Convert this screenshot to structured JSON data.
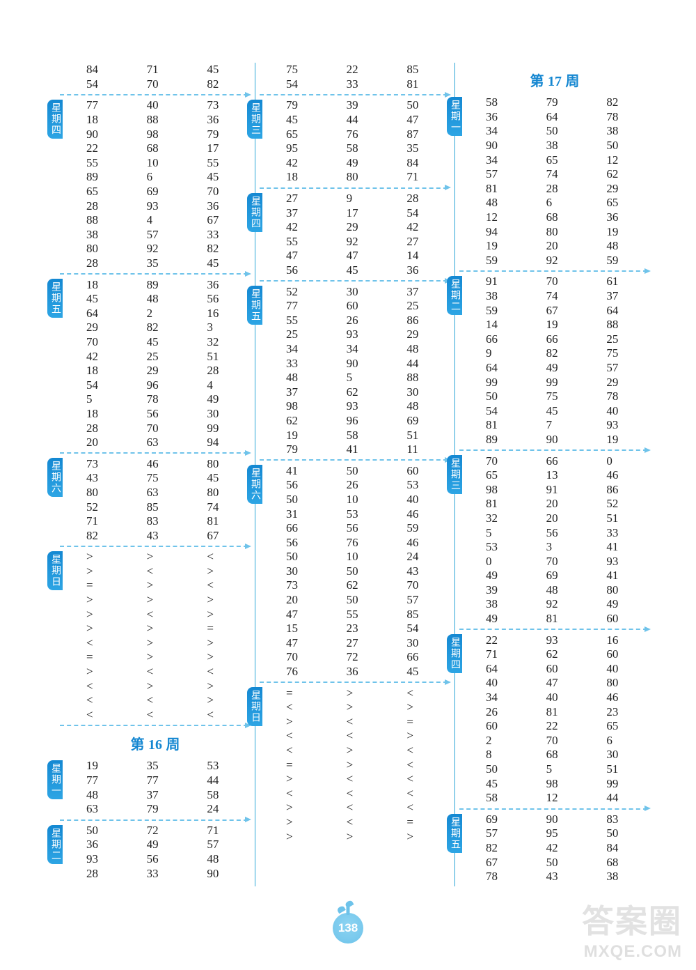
{
  "page_number": "138",
  "watermark_main": "答案圈",
  "watermark_sub": "MXQE.COM",
  "columns": [
    {
      "blocks": [
        {
          "tab": null,
          "rows": [
            [
              "84",
              "71",
              "45"
            ],
            [
              "54",
              "70",
              "82"
            ]
          ],
          "divider_after": true
        },
        {
          "tab": "星期四",
          "rows": [
            [
              "77",
              "40",
              "73"
            ],
            [
              "18",
              "88",
              "36"
            ],
            [
              "90",
              "98",
              "79"
            ],
            [
              "22",
              "68",
              "17"
            ],
            [
              "55",
              "10",
              "55"
            ],
            [
              "89",
              "6",
              "45"
            ],
            [
              "65",
              "69",
              "70"
            ],
            [
              "28",
              "93",
              "36"
            ],
            [
              "88",
              "4",
              "67"
            ],
            [
              "38",
              "57",
              "33"
            ],
            [
              "80",
              "92",
              "82"
            ],
            [
              "28",
              "35",
              "45"
            ]
          ],
          "divider_after": true
        },
        {
          "tab": "星期五",
          "rows": [
            [
              "18",
              "89",
              "36"
            ],
            [
              "45",
              "48",
              "56"
            ],
            [
              "64",
              "2",
              "16"
            ],
            [
              "29",
              "82",
              "3"
            ],
            [
              "70",
              "45",
              "32"
            ],
            [
              "42",
              "25",
              "51"
            ],
            [
              "18",
              "29",
              "28"
            ],
            [
              "54",
              "96",
              "4"
            ],
            [
              "5",
              "78",
              "49"
            ],
            [
              "18",
              "56",
              "30"
            ],
            [
              "28",
              "70",
              "99"
            ],
            [
              "20",
              "63",
              "94"
            ]
          ],
          "divider_after": true
        },
        {
          "tab": "星期六",
          "rows": [
            [
              "73",
              "46",
              "80"
            ],
            [
              "43",
              "75",
              "45"
            ],
            [
              "80",
              "63",
              "80"
            ],
            [
              "52",
              "85",
              "74"
            ],
            [
              "71",
              "83",
              "81"
            ],
            [
              "82",
              "43",
              "67"
            ]
          ],
          "divider_after": true
        },
        {
          "tab": "星期日",
          "rows": [
            [
              ">",
              ">",
              "<"
            ],
            [
              ">",
              "<",
              ">"
            ],
            [
              "=",
              ">",
              "<"
            ],
            [
              ">",
              ">",
              ">"
            ],
            [
              ">",
              "<",
              ">"
            ],
            [
              ">",
              ">",
              "="
            ],
            [
              "<",
              ">",
              ">"
            ],
            [
              "=",
              ">",
              ">"
            ],
            [
              ">",
              "<",
              "<"
            ],
            [
              "<",
              ">",
              ">"
            ],
            [
              "<",
              "<",
              ">"
            ],
            [
              "<",
              "<",
              "<"
            ]
          ],
          "divider_after": true
        },
        {
          "week_title": "第 16 周"
        },
        {
          "tab": "星期一",
          "rows": [
            [
              "19",
              "35",
              "53"
            ],
            [
              "77",
              "77",
              "44"
            ],
            [
              "48",
              "37",
              "58"
            ],
            [
              "63",
              "79",
              "24"
            ]
          ],
          "divider_after": true
        },
        {
          "tab": "星期二",
          "rows": [
            [
              "50",
              "72",
              "71"
            ],
            [
              "36",
              "49",
              "57"
            ],
            [
              "93",
              "56",
              "48"
            ],
            [
              "28",
              "33",
              "90"
            ]
          ],
          "divider_after": false
        }
      ]
    },
    {
      "blocks": [
        {
          "tab": null,
          "rows": [
            [
              "75",
              "22",
              "85"
            ],
            [
              "54",
              "33",
              "81"
            ]
          ],
          "divider_after": true
        },
        {
          "tab": "星期三",
          "rows": [
            [
              "79",
              "39",
              "50"
            ],
            [
              "45",
              "44",
              "47"
            ],
            [
              "65",
              "76",
              "87"
            ],
            [
              "95",
              "58",
              "35"
            ],
            [
              "42",
              "49",
              "84"
            ],
            [
              "18",
              "80",
              "71"
            ]
          ],
          "divider_after": true
        },
        {
          "tab": "星期四",
          "rows": [
            [
              "27",
              "9",
              "28"
            ],
            [
              "37",
              "17",
              "54"
            ],
            [
              "42",
              "29",
              "42"
            ],
            [
              "55",
              "92",
              "27"
            ],
            [
              "47",
              "47",
              "14"
            ],
            [
              "56",
              "45",
              "36"
            ]
          ],
          "divider_after": true
        },
        {
          "tab": "星期五",
          "rows": [
            [
              "52",
              "30",
              "37"
            ],
            [
              "77",
              "60",
              "25"
            ],
            [
              "55",
              "26",
              "86"
            ],
            [
              "25",
              "93",
              "29"
            ],
            [
              "34",
              "34",
              "48"
            ],
            [
              "33",
              "90",
              "44"
            ],
            [
              "48",
              "5",
              "88"
            ],
            [
              "37",
              "62",
              "30"
            ],
            [
              "98",
              "93",
              "48"
            ],
            [
              "62",
              "96",
              "69"
            ],
            [
              "19",
              "58",
              "51"
            ],
            [
              "79",
              "41",
              "11"
            ]
          ],
          "divider_after": true
        },
        {
          "tab": "星期六",
          "rows": [
            [
              "41",
              "50",
              "60"
            ],
            [
              "56",
              "26",
              "53"
            ],
            [
              "50",
              "10",
              "40"
            ],
            [
              "31",
              "53",
              "46"
            ],
            [
              "66",
              "56",
              "59"
            ],
            [
              "56",
              "76",
              "46"
            ],
            [
              "50",
              "10",
              "24"
            ],
            [
              "30",
              "50",
              "43"
            ],
            [
              "73",
              "62",
              "70"
            ],
            [
              "20",
              "50",
              "57"
            ],
            [
              "47",
              "55",
              "85"
            ],
            [
              "15",
              "23",
              "54"
            ],
            [
              "47",
              "27",
              "30"
            ],
            [
              "70",
              "72",
              "66"
            ],
            [
              "76",
              "36",
              "45"
            ]
          ],
          "divider_after": true
        },
        {
          "tab": "星期日",
          "rows": [
            [
              "=",
              ">",
              "<"
            ],
            [
              "<",
              ">",
              ">"
            ],
            [
              ">",
              "<",
              "="
            ],
            [
              "<",
              "<",
              ">"
            ],
            [
              "<",
              ">",
              "<"
            ],
            [
              "=",
              ">",
              "<"
            ],
            [
              ">",
              "<",
              "<"
            ],
            [
              "<",
              "<",
              "<"
            ],
            [
              ">",
              "<",
              "<"
            ],
            [
              ">",
              "<",
              "="
            ],
            [
              ">",
              ">",
              ">"
            ]
          ],
          "divider_after": false
        }
      ]
    },
    {
      "blocks": [
        {
          "week_title": "第 17 周"
        },
        {
          "tab": "星期一",
          "rows": [
            [
              "58",
              "79",
              "82"
            ],
            [
              "36",
              "64",
              "78"
            ],
            [
              "34",
              "50",
              "38"
            ],
            [
              "90",
              "38",
              "50"
            ],
            [
              "34",
              "65",
              "12"
            ],
            [
              "57",
              "74",
              "62"
            ],
            [
              "81",
              "28",
              "29"
            ],
            [
              "48",
              "6",
              "65"
            ],
            [
              "12",
              "68",
              "36"
            ],
            [
              "94",
              "80",
              "19"
            ],
            [
              "19",
              "20",
              "48"
            ],
            [
              "59",
              "92",
              "59"
            ]
          ],
          "divider_after": true
        },
        {
          "tab": "星期二",
          "rows": [
            [
              "91",
              "70",
              "61"
            ],
            [
              "38",
              "74",
              "37"
            ],
            [
              "59",
              "67",
              "64"
            ],
            [
              "14",
              "19",
              "88"
            ],
            [
              "66",
              "66",
              "25"
            ],
            [
              "9",
              "82",
              "75"
            ],
            [
              "64",
              "49",
              "57"
            ],
            [
              "99",
              "99",
              "29"
            ],
            [
              "50",
              "75",
              "78"
            ],
            [
              "54",
              "45",
              "40"
            ],
            [
              "81",
              "7",
              "93"
            ],
            [
              "89",
              "90",
              "19"
            ]
          ],
          "divider_after": true
        },
        {
          "tab": "星期三",
          "rows": [
            [
              "70",
              "66",
              "0"
            ],
            [
              "65",
              "13",
              "46"
            ],
            [
              "98",
              "91",
              "86"
            ],
            [
              "81",
              "20",
              "52"
            ],
            [
              "32",
              "20",
              "51"
            ],
            [
              "5",
              "56",
              "33"
            ],
            [
              "53",
              "3",
              "41"
            ],
            [
              "0",
              "70",
              "93"
            ],
            [
              "49",
              "69",
              "41"
            ],
            [
              "39",
              "48",
              "80"
            ],
            [
              "38",
              "92",
              "49"
            ],
            [
              "49",
              "81",
              "60"
            ]
          ],
          "divider_after": true
        },
        {
          "tab": "星期四",
          "rows": [
            [
              "22",
              "93",
              "16"
            ],
            [
              "71",
              "62",
              "60"
            ],
            [
              "64",
              "60",
              "40"
            ],
            [
              "40",
              "47",
              "80"
            ],
            [
              "34",
              "40",
              "46"
            ],
            [
              "26",
              "81",
              "23"
            ],
            [
              "60",
              "22",
              "65"
            ],
            [
              "2",
              "70",
              "6"
            ],
            [
              "8",
              "68",
              "30"
            ],
            [
              "50",
              "5",
              "51"
            ],
            [
              "45",
              "98",
              "99"
            ],
            [
              "58",
              "12",
              "44"
            ]
          ],
          "divider_after": true
        },
        {
          "tab": "星期五",
          "rows": [
            [
              "69",
              "90",
              "83"
            ],
            [
              "57",
              "95",
              "50"
            ],
            [
              "82",
              "42",
              "84"
            ],
            [
              "67",
              "50",
              "68"
            ],
            [
              "78",
              "43",
              "38"
            ]
          ],
          "divider_after": false
        }
      ]
    }
  ]
}
